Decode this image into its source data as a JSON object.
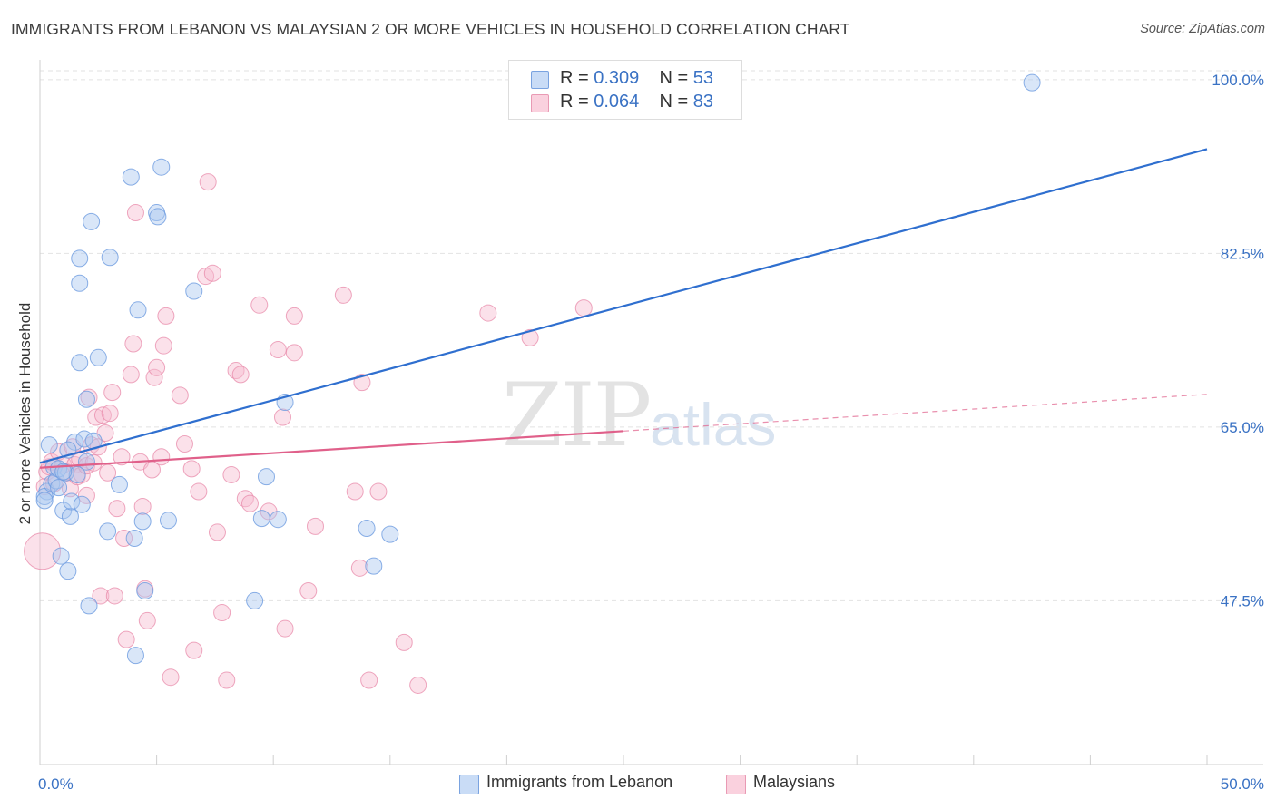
{
  "title": "IMMIGRANTS FROM LEBANON VS MALAYSIAN 2 OR MORE VEHICLES IN HOUSEHOLD CORRELATION CHART",
  "source": "Source: ZipAtlas.com",
  "watermark": {
    "zip": "ZIP",
    "atlas": "atlas"
  },
  "legend_top": [
    {
      "r_label": "R = ",
      "r_value": "0.309",
      "n_label": "N = ",
      "n_value": "53"
    },
    {
      "r_label": "R = ",
      "r_value": "0.064",
      "n_label": "N = ",
      "n_value": "83"
    }
  ],
  "legend_bottom": [
    {
      "label": "Immigrants from Lebanon"
    },
    {
      "label": "Malaysians"
    }
  ],
  "colors": {
    "blue_fill": "#aac8f0",
    "blue_stroke": "#6d9be0",
    "blue_line": "#2f6fcf",
    "pink_fill": "#f7bcd0",
    "pink_stroke": "#e88aaa",
    "pink_line": "#e0608a",
    "tick_label": "#3a72c4",
    "grid": "#e2e2e2"
  },
  "chart_data": {
    "type": "scatter",
    "title": "IMMIGRANTS FROM LEBANON VS MALAYSIAN 2 OR MORE VEHICLES IN HOUSEHOLD CORRELATION CHART",
    "xlabel": "",
    "ylabel": "2 or more Vehicles in Household",
    "xlim": [
      0,
      50
    ],
    "ylim": [
      31,
      102
    ],
    "x_tick_labels": [
      "0.0%",
      "50.0%"
    ],
    "y_ticks": [
      47.5,
      65.0,
      82.5,
      100.0
    ],
    "y_tick_labels": [
      "47.5%",
      "65.0%",
      "82.5%",
      "100.0%"
    ],
    "grid": true,
    "legend_position": "top-center",
    "series": [
      {
        "name": "Immigrants from Lebanon",
        "color": "#aac8f0",
        "trend": {
          "x": [
            0,
            50
          ],
          "y": [
            61.4,
            93.0
          ],
          "style": "solid"
        },
        "points": [
          [
            0.3,
            58.5
          ],
          [
            0.2,
            58.0
          ],
          [
            0.4,
            63.2
          ],
          [
            0.5,
            59.3
          ],
          [
            0.6,
            61.0
          ],
          [
            0.7,
            59.6
          ],
          [
            0.8,
            60.8
          ],
          [
            0.9,
            52.0
          ],
          [
            1.0,
            56.6
          ],
          [
            1.1,
            60.4
          ],
          [
            1.2,
            50.5
          ],
          [
            1.3,
            56.0
          ],
          [
            1.35,
            57.5
          ],
          [
            1.5,
            63.5
          ],
          [
            1.6,
            60.2
          ],
          [
            1.7,
            82.0
          ],
          [
            1.7,
            79.5
          ],
          [
            1.7,
            71.5
          ],
          [
            1.8,
            57.2
          ],
          [
            1.9,
            63.8
          ],
          [
            2.0,
            61.5
          ],
          [
            2.0,
            67.8
          ],
          [
            2.1,
            47.0
          ],
          [
            2.2,
            85.7
          ],
          [
            2.3,
            63.6
          ],
          [
            2.5,
            72.0
          ],
          [
            2.9,
            54.5
          ],
          [
            3.0,
            82.1
          ],
          [
            3.4,
            59.2
          ],
          [
            3.9,
            90.2
          ],
          [
            4.05,
            53.8
          ],
          [
            4.1,
            42.0
          ],
          [
            4.2,
            76.8
          ],
          [
            4.4,
            55.5
          ],
          [
            4.5,
            48.5
          ],
          [
            5.0,
            86.6
          ],
          [
            5.05,
            86.2
          ],
          [
            5.2,
            91.2
          ],
          [
            5.5,
            55.6
          ],
          [
            6.6,
            78.7
          ],
          [
            9.2,
            47.5
          ],
          [
            9.5,
            55.8
          ],
          [
            9.7,
            60.0
          ],
          [
            10.2,
            55.7
          ],
          [
            10.5,
            67.5
          ],
          [
            14.0,
            54.8
          ],
          [
            14.3,
            51.0
          ],
          [
            15.0,
            54.2
          ],
          [
            42.5,
            99.7
          ],
          [
            0.2,
            57.6
          ],
          [
            0.8,
            58.9
          ],
          [
            1.0,
            60.5
          ],
          [
            1.2,
            62.7
          ]
        ]
      },
      {
        "name": "Malaysians",
        "color": "#f7bcd0",
        "trend": {
          "x": [
            0,
            25
          ],
          "y": [
            60.9,
            64.6
          ],
          "style": "solid",
          "extended_to": [
            50,
            68.3
          ],
          "extended_style": "dashed"
        },
        "points": [
          [
            0.2,
            59.0
          ],
          [
            0.3,
            60.5
          ],
          [
            0.4,
            61.0
          ],
          [
            0.5,
            61.5
          ],
          [
            0.6,
            59.3
          ],
          [
            0.8,
            62.5
          ],
          [
            1.0,
            61.2
          ],
          [
            1.1,
            60.5
          ],
          [
            1.3,
            58.8
          ],
          [
            1.4,
            63.0
          ],
          [
            1.5,
            61.2
          ],
          [
            1.6,
            60.0
          ],
          [
            1.7,
            61.8
          ],
          [
            1.8,
            60.2
          ],
          [
            2.0,
            58.1
          ],
          [
            2.0,
            61.1
          ],
          [
            2.1,
            68.0
          ],
          [
            2.2,
            63.2
          ],
          [
            2.3,
            61.4
          ],
          [
            2.4,
            66.0
          ],
          [
            2.5,
            63.0
          ],
          [
            2.6,
            48.0
          ],
          [
            2.7,
            66.2
          ],
          [
            2.8,
            64.4
          ],
          [
            2.9,
            60.4
          ],
          [
            3.0,
            66.4
          ],
          [
            3.1,
            68.5
          ],
          [
            3.2,
            48.0
          ],
          [
            3.3,
            56.8
          ],
          [
            3.5,
            62.0
          ],
          [
            3.6,
            53.8
          ],
          [
            3.7,
            43.6
          ],
          [
            3.9,
            70.3
          ],
          [
            4.0,
            73.4
          ],
          [
            4.1,
            86.6
          ],
          [
            4.3,
            61.5
          ],
          [
            4.4,
            57.0
          ],
          [
            4.5,
            48.7
          ],
          [
            4.6,
            45.5
          ],
          [
            4.8,
            60.7
          ],
          [
            4.9,
            70.0
          ],
          [
            5.0,
            71.0
          ],
          [
            5.2,
            62.0
          ],
          [
            5.3,
            73.2
          ],
          [
            5.4,
            76.2
          ],
          [
            5.6,
            39.8
          ],
          [
            6.0,
            68.2
          ],
          [
            6.2,
            63.3
          ],
          [
            6.5,
            60.8
          ],
          [
            6.6,
            42.5
          ],
          [
            6.8,
            58.5
          ],
          [
            7.1,
            80.2
          ],
          [
            7.2,
            89.7
          ],
          [
            7.4,
            80.5
          ],
          [
            7.6,
            54.4
          ],
          [
            7.8,
            46.3
          ],
          [
            8.0,
            39.5
          ],
          [
            8.2,
            60.2
          ],
          [
            8.4,
            70.7
          ],
          [
            8.6,
            70.3
          ],
          [
            8.8,
            57.8
          ],
          [
            9.0,
            57.3
          ],
          [
            9.4,
            77.3
          ],
          [
            9.8,
            56.5
          ],
          [
            10.2,
            72.8
          ],
          [
            10.4,
            66.0
          ],
          [
            10.5,
            44.7
          ],
          [
            10.9,
            76.2
          ],
          [
            10.9,
            72.5
          ],
          [
            11.5,
            48.5
          ],
          [
            11.8,
            55.0
          ],
          [
            13.0,
            78.3
          ],
          [
            13.5,
            58.5
          ],
          [
            13.7,
            50.8
          ],
          [
            13.8,
            69.5
          ],
          [
            14.1,
            39.5
          ],
          [
            14.5,
            58.5
          ],
          [
            15.6,
            43.3
          ],
          [
            16.2,
            39.0
          ],
          [
            19.2,
            76.5
          ],
          [
            21.0,
            74.0
          ],
          [
            23.3,
            77.0
          ],
          [
            0.1,
            52.5
          ]
        ]
      }
    ]
  }
}
